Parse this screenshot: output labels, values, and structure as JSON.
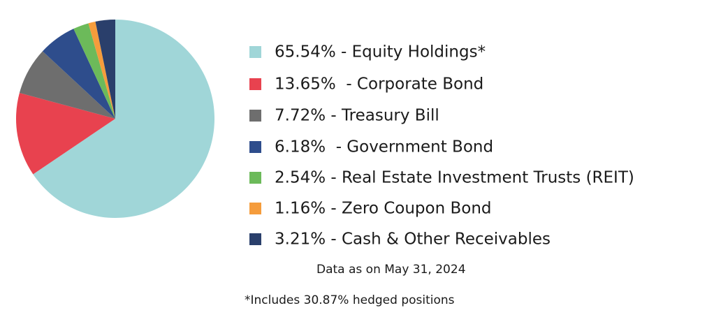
{
  "chart_data": {
    "type": "pie",
    "categories": [
      "65.54% - Equity Holdings*",
      "13.65%  - Corporate Bond",
      "7.72% - Treasury Bill",
      "6.18%  - Government Bond",
      "2.54% - Real Estate Investment Trusts (REIT)",
      "1.16% - Zero Coupon Bond",
      "3.21% - Cash & Other Receivables"
    ],
    "values": [
      65.54,
      13.65,
      7.72,
      6.18,
      2.54,
      1.16,
      3.21
    ],
    "colors": [
      "#a0d6d8",
      "#e8424f",
      "#6e6e6e",
      "#2e4d8c",
      "#6cba5a",
      "#f59c3c",
      "#2a3f6b"
    ],
    "notes": [
      "Data as on May 31, 2024",
      "*Includes 30.87% hedged positions"
    ]
  }
}
